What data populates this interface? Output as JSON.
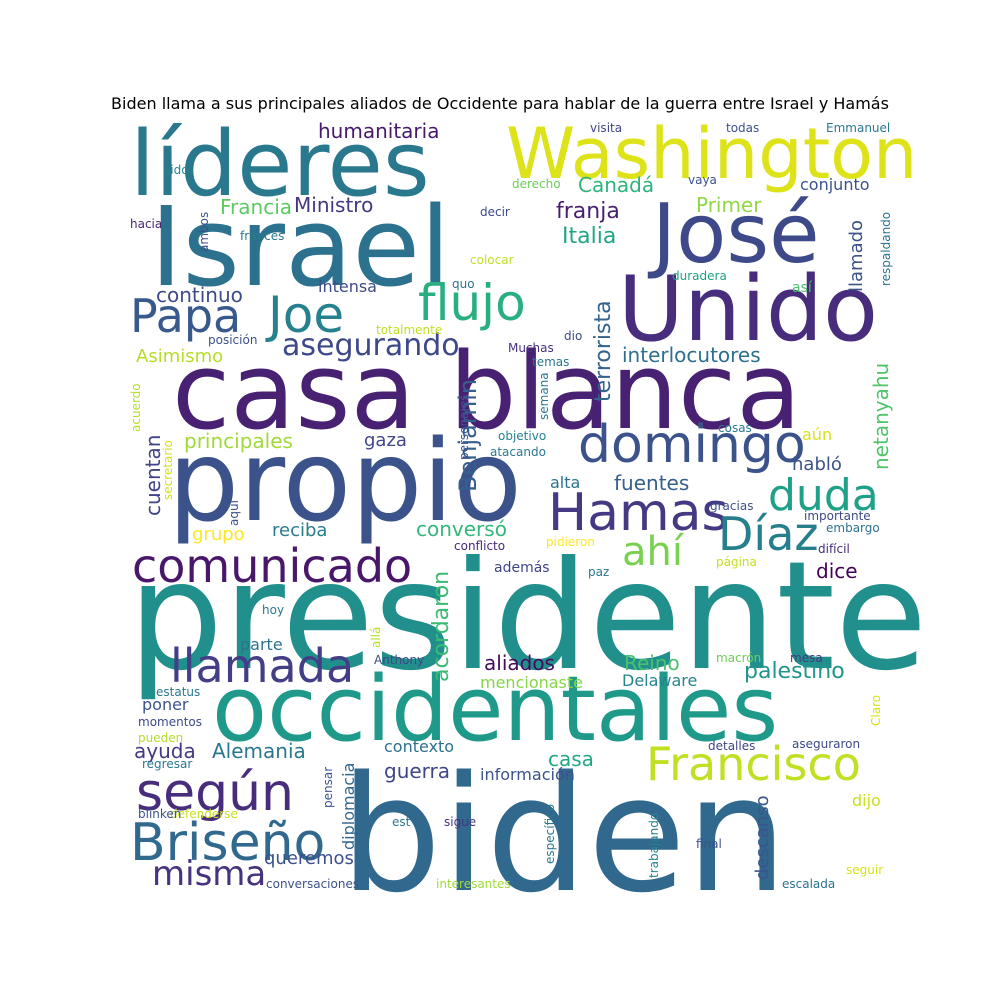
{
  "title": "Biden llama a sus principales aliados de Occidente para hablar de la guerra entre Israel y Hamás",
  "words": [
    {
      "text": "presidente",
      "color": "#21908d",
      "weight": 100
    },
    {
      "text": "biden",
      "color": "#31688e",
      "weight": 95
    },
    {
      "text": "Israel",
      "color": "#2c728e",
      "weight": 72
    },
    {
      "text": "propio",
      "color": "#3b528b",
      "weight": 72
    },
    {
      "text": "casa blanca",
      "color": "#482173",
      "weight": 70
    },
    {
      "text": "occidentales",
      "color": "#1f9a8a",
      "weight": 60
    },
    {
      "text": "Unido",
      "color": "#472d7b",
      "weight": 58
    },
    {
      "text": "líderes",
      "color": "#2a788e",
      "weight": 56
    },
    {
      "text": "José",
      "color": "#3e4989",
      "weight": 54
    },
    {
      "text": "Washington",
      "color": "#dde318",
      "weight": 50
    },
    {
      "text": "domingo",
      "color": "#3b528b",
      "weight": 42
    },
    {
      "text": "Hamas",
      "color": "#443983",
      "weight": 40
    },
    {
      "text": "según",
      "color": "#472d7b",
      "weight": 40
    },
    {
      "text": "llamada",
      "color": "#433e85",
      "weight": 38
    },
    {
      "text": "Briseño",
      "color": "#31688e",
      "weight": 38
    },
    {
      "text": "comunicado",
      "color": "#481769",
      "weight": 38
    },
    {
      "text": "Francisco",
      "color": "#c2df23",
      "weight": 38
    },
    {
      "text": "flujo",
      "color": "#29af7f",
      "weight": 36
    },
    {
      "text": "Joe",
      "color": "#26818e",
      "weight": 36
    },
    {
      "text": "Papa",
      "color": "#38598c",
      "weight": 36
    },
    {
      "text": "duda",
      "color": "#1fa187",
      "weight": 34
    },
    {
      "text": "Díaz",
      "color": "#277f8e",
      "weight": 34
    },
    {
      "text": "ahí",
      "color": "#7ad151",
      "weight": 34
    },
    {
      "text": "misma",
      "color": "#46327e",
      "weight": 26
    },
    {
      "text": "asegurando",
      "color": "#3e4989",
      "weight": 26
    },
    {
      "text": "Benjamin",
      "color": "#355f8d",
      "weight": 22
    },
    {
      "text": "terrorista",
      "color": "#33638d",
      "weight": 20
    },
    {
      "text": "netanyahu",
      "color": "#50c46a",
      "weight": 20
    },
    {
      "text": "acordaron",
      "color": "#3bbb75",
      "weight": 20
    },
    {
      "text": "franja",
      "color": "#481f70",
      "weight": 20
    },
    {
      "text": "Italia",
      "color": "#21a685",
      "weight": 20
    },
    {
      "text": "Canadá",
      "color": "#2eb37c",
      "weight": 18
    },
    {
      "text": "Ministro",
      "color": "#453781",
      "weight": 18
    },
    {
      "text": "Francia",
      "color": "#5ec962",
      "weight": 18
    },
    {
      "text": "Primer",
      "color": "#8fd744",
      "weight": 18
    },
    {
      "text": "humanitaria",
      "color": "#481a6c",
      "weight": 18
    },
    {
      "text": "continuo",
      "color": "#3e4a89",
      "weight": 18
    },
    {
      "text": "interlocutores",
      "color": "#2d708e",
      "weight": 18
    },
    {
      "text": "principales",
      "color": "#a0da39",
      "weight": 18
    },
    {
      "text": "fuentes",
      "color": "#355f8d",
      "weight": 18
    },
    {
      "text": "conversó",
      "color": "#35b779",
      "weight": 18
    },
    {
      "text": "aliados",
      "color": "#460b5e",
      "weight": 18
    },
    {
      "text": "Reino",
      "color": "#4ac16d",
      "weight": 18
    },
    {
      "text": "palestino",
      "color": "#1f958b",
      "weight": 18
    },
    {
      "text": "Alemania",
      "color": "#2a788e",
      "weight": 18
    },
    {
      "text": "ayuda",
      "color": "#443983",
      "weight": 18
    },
    {
      "text": "guerra",
      "color": "#3f4788",
      "weight": 18
    },
    {
      "text": "casa",
      "color": "#22a785",
      "weight": 18
    },
    {
      "text": "cuentan",
      "color": "#414487",
      "weight": 18
    },
    {
      "text": "dice",
      "color": "#440154",
      "weight": 18
    },
    {
      "text": "habló",
      "color": "#3b528b",
      "weight": 16
    },
    {
      "text": "reciba",
      "color": "#287c8e",
      "weight": 16
    },
    {
      "text": "grupo",
      "color": "#fde725",
      "weight": 16
    },
    {
      "text": "gaza",
      "color": "#404688",
      "weight": 16
    },
    {
      "text": "Asimismo",
      "color": "#b5de2b",
      "weight": 16
    },
    {
      "text": "llamado",
      "color": "#3b528b",
      "weight": 16
    },
    {
      "text": "descanso",
      "color": "#3a548c",
      "weight": 16
    },
    {
      "text": "queremos",
      "color": "#3b528b",
      "weight": 16
    },
    {
      "text": "información",
      "color": "#3b528b",
      "weight": 14
    },
    {
      "text": "diplomacia",
      "color": "#31688e",
      "weight": 14
    },
    {
      "text": "Delaware",
      "color": "#25838e",
      "weight": 14
    },
    {
      "text": "mencionaste",
      "color": "#86d549",
      "weight": 14
    },
    {
      "text": "intensa",
      "color": "#3e4989",
      "weight": 14
    },
    {
      "text": "conjunto",
      "color": "#3b528b",
      "weight": 14
    },
    {
      "text": "parte",
      "color": "#2c728e",
      "weight": 14
    },
    {
      "text": "poner",
      "color": "#3b528b",
      "weight": 14
    },
    {
      "text": "contexto",
      "color": "#2c728e",
      "weight": 14
    },
    {
      "text": "dijo",
      "color": "#c8e020",
      "weight": 14
    },
    {
      "text": "alta",
      "color": "#2c728e",
      "weight": 14
    },
    {
      "text": "aún",
      "color": "#d8e219",
      "weight": 14
    },
    {
      "text": "además",
      "color": "#404688",
      "weight": 13
    },
    {
      "text": "así",
      "color": "#48c16e",
      "weight": 13
    },
    {
      "text": "todas",
      "color": "#3b528b",
      "weight": 12
    },
    {
      "text": "visita",
      "color": "#404688",
      "weight": 12
    },
    {
      "text": "Emmanuel",
      "color": "#2a788e",
      "weight": 12
    },
    {
      "text": "sido",
      "color": "#25838e",
      "weight": 12
    },
    {
      "text": "hacia",
      "color": "#482475",
      "weight": 12
    },
    {
      "text": "ambos",
      "color": "#3b528b",
      "weight": 12
    },
    {
      "text": "francés",
      "color": "#2a788e",
      "weight": 12
    },
    {
      "text": "derecho",
      "color": "#6ccd5a",
      "weight": 12
    },
    {
      "text": "vaya",
      "color": "#3b528b",
      "weight": 12
    },
    {
      "text": "decir",
      "color": "#3e4989",
      "weight": 12
    },
    {
      "text": "colocar",
      "color": "#c0df25",
      "weight": 12
    },
    {
      "text": "quo",
      "color": "#2d708e",
      "weight": 12
    },
    {
      "text": "duradera",
      "color": "#1fa187",
      "weight": 12
    },
    {
      "text": "respaldando",
      "color": "#2c728e",
      "weight": 12
    },
    {
      "text": "totalmente",
      "color": "#c2df23",
      "weight": 12
    },
    {
      "text": "posición",
      "color": "#3b528b",
      "weight": 12
    },
    {
      "text": "dio",
      "color": "#3e4989",
      "weight": 12
    },
    {
      "text": "Muchas",
      "color": "#46327e",
      "weight": 12
    },
    {
      "text": "temas",
      "color": "#2a788e",
      "weight": 12
    },
    {
      "text": "personajes",
      "color": "#3b528b",
      "weight": 12
    },
    {
      "text": "semana",
      "color": "#2a788e",
      "weight": 12
    },
    {
      "text": "acuerdo",
      "color": "#b5de2b",
      "weight": 12
    },
    {
      "text": "secretario",
      "color": "#d0e11c",
      "weight": 12
    },
    {
      "text": "aquí",
      "color": "#3b528b",
      "weight": 12
    },
    {
      "text": "objetivo",
      "color": "#25838e",
      "weight": 12
    },
    {
      "text": "atacando",
      "color": "#2a788e",
      "weight": 12
    },
    {
      "text": "cosas",
      "color": "#2a788e",
      "weight": 12
    },
    {
      "text": "gracias",
      "color": "#3b528b",
      "weight": 12
    },
    {
      "text": "importante",
      "color": "#3e4989",
      "weight": 12
    },
    {
      "text": "embargo",
      "color": "#2c728e",
      "weight": 12
    },
    {
      "text": "difícil",
      "color": "#472d7b",
      "weight": 12
    },
    {
      "text": "pidieron",
      "color": "#fde725",
      "weight": 12
    },
    {
      "text": "página",
      "color": "#c8e020",
      "weight": 12
    },
    {
      "text": "paz",
      "color": "#2a788e",
      "weight": 12
    },
    {
      "text": "conflicto",
      "color": "#482878",
      "weight": 12
    },
    {
      "text": "hoy",
      "color": "#2a788e",
      "weight": 12
    },
    {
      "text": "allá",
      "color": "#b5de2b",
      "weight": 12
    },
    {
      "text": "Anthony",
      "color": "#404688",
      "weight": 12
    },
    {
      "text": "macrón",
      "color": "#6ccd5a",
      "weight": 12
    },
    {
      "text": "mesa",
      "color": "#443983",
      "weight": 12
    },
    {
      "text": "estatus",
      "color": "#2a788e",
      "weight": 12
    },
    {
      "text": "momentos",
      "color": "#3e4989",
      "weight": 12
    },
    {
      "text": "pueden",
      "color": "#b5de2b",
      "weight": 12
    },
    {
      "text": "regresar",
      "color": "#2a788e",
      "weight": 12
    },
    {
      "text": "Claro",
      "color": "#d8e219",
      "weight": 12
    },
    {
      "text": "detalles",
      "color": "#404688",
      "weight": 12
    },
    {
      "text": "aseguraron",
      "color": "#3e4989",
      "weight": 12
    },
    {
      "text": "pensar",
      "color": "#3b528b",
      "weight": 12
    },
    {
      "text": "defenderse",
      "color": "#c8e020",
      "weight": 12
    },
    {
      "text": "blinken",
      "color": "#3b528b",
      "weight": 12
    },
    {
      "text": "específico",
      "color": "#2a788e",
      "weight": 12
    },
    {
      "text": "trabajando",
      "color": "#25838e",
      "weight": 12
    },
    {
      "text": "est",
      "color": "#2a788e",
      "weight": 12
    },
    {
      "text": "sigue",
      "color": "#46327e",
      "weight": 12
    },
    {
      "text": "final",
      "color": "#3b528b",
      "weight": 12
    },
    {
      "text": "conversaciones",
      "color": "#3b528b",
      "weight": 12
    },
    {
      "text": "interesantes",
      "color": "#a0da39",
      "weight": 12
    },
    {
      "text": "seguir",
      "color": "#d8e219",
      "weight": 12
    },
    {
      "text": "escalada",
      "color": "#2c728e",
      "weight": 12
    }
  ]
}
